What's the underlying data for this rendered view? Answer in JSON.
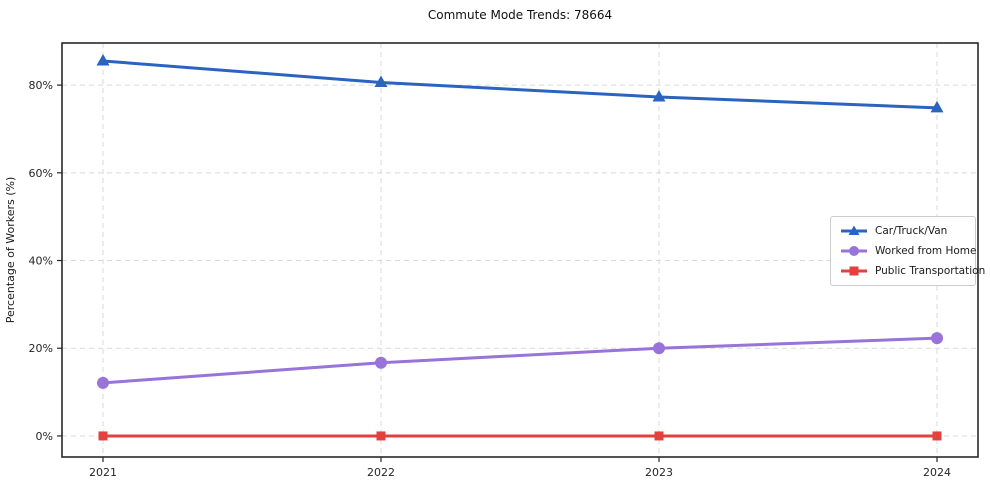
{
  "figure": {
    "background": "#ffffff"
  },
  "chart_data": {
    "type": "line",
    "title": "Commute Mode Trends: 78664",
    "xlabel": "",
    "ylabel": "Percentage of Workers (%)",
    "x": [
      "2021",
      "2022",
      "2023",
      "2024"
    ],
    "y_ticks": [
      0,
      20,
      40,
      60,
      80
    ],
    "y_tick_labels": [
      "0%",
      "20%",
      "40%",
      "60%",
      "80%"
    ],
    "ylim": [
      -4.8,
      89.6
    ],
    "grid": {
      "style": "dashed",
      "color": "#d9d9d9"
    },
    "axis": {
      "spine_color": "#1a1a1a",
      "tick_color": "#262626"
    },
    "legend": {
      "position": "center-right",
      "border_color": "#cccccc",
      "background": "#ffffff"
    },
    "series": [
      {
        "name": "Car/Truck/Van",
        "marker": "triangle",
        "color": "#2b63c1",
        "values": [
          85.5,
          80.6,
          77.3,
          74.8
        ]
      },
      {
        "name": "Worked from Home",
        "marker": "circle",
        "color": "#9873d9",
        "values": [
          12.1,
          16.7,
          20.0,
          22.3
        ]
      },
      {
        "name": "Public Transportation",
        "marker": "square",
        "color": "#e2413d",
        "values": [
          0.0,
          0.0,
          0.0,
          0.0
        ]
      }
    ]
  }
}
